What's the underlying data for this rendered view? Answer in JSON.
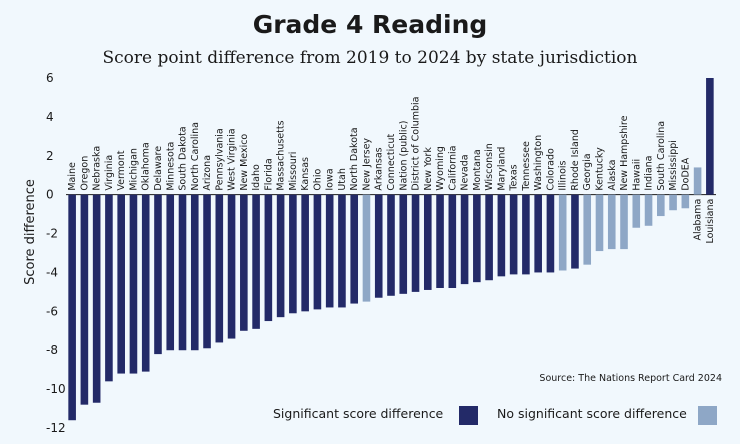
{
  "colors": {
    "significant": "#232a68",
    "not_significant": "#8ea7c6",
    "background": "#f1f8fd"
  },
  "chart_data": {
    "type": "bar",
    "title": "Grade 4 Reading",
    "subtitle": "Score point difference from 2019 to 2024 by state jurisdiction",
    "ylabel": "Score difference",
    "ylim": [
      -12,
      6
    ],
    "yticks": [
      6,
      4,
      2,
      0,
      -2,
      -4,
      -6,
      -8,
      -10,
      -12
    ],
    "grid": false,
    "legend_position": "bottom-right",
    "source": "Source: The Nations Report Card 2024",
    "legend": {
      "significant": "Significant score difference",
      "not_significant": "No significant score difference"
    },
    "categories": [
      "Maine",
      "Oregon",
      "Nebraska",
      "Virginia",
      "Vermont",
      "Michigan",
      "Oklahoma",
      "Delaware",
      "Minnesota",
      "South Dakota",
      "North Carolina",
      "Arizona",
      "Pennsylvania",
      "West Virginia",
      "New Mexico",
      "Idaho",
      "Florida",
      "Massachusetts",
      "Missouri",
      "Kansas",
      "Ohio",
      "Iowa",
      "Utah",
      "North Dakota",
      "New Jersey",
      "Arkansas",
      "Connecticut",
      "Nation (public)",
      "District of Columbia",
      "New York",
      "Wyoming",
      "California",
      "Nevada",
      "Montana",
      "Wisconsin",
      "Maryland",
      "Texas",
      "Tennessee",
      "Washington",
      "Colorado",
      "Illinois",
      "Rhode Island",
      "Georgia",
      "Kentucky",
      "Alaska",
      "New Hampshire",
      "Hawaii",
      "Indiana",
      "South Carolina",
      "Mississippi",
      "DoDEA",
      "Alabama",
      "Louisiana"
    ],
    "values": [
      -11.6,
      -10.8,
      -10.7,
      -9.6,
      -9.2,
      -9.2,
      -9.1,
      -8.2,
      -8.0,
      -8.0,
      -8.0,
      -7.9,
      -7.6,
      -7.4,
      -7.0,
      -6.9,
      -6.5,
      -6.3,
      -6.1,
      -6.0,
      -5.9,
      -5.8,
      -5.8,
      -5.6,
      -5.5,
      -5.3,
      -5.2,
      -5.1,
      -5.0,
      -4.9,
      -4.8,
      -4.8,
      -4.6,
      -4.5,
      -4.4,
      -4.2,
      -4.1,
      -4.1,
      -4.0,
      -4.0,
      -3.9,
      -3.8,
      -3.6,
      -2.9,
      -2.8,
      -2.8,
      -1.7,
      -1.6,
      -1.1,
      -0.8,
      -0.7,
      1.4,
      6.0
    ],
    "significant": [
      true,
      true,
      true,
      true,
      true,
      true,
      true,
      true,
      true,
      true,
      true,
      true,
      true,
      true,
      true,
      true,
      true,
      true,
      true,
      true,
      true,
      true,
      true,
      true,
      false,
      true,
      true,
      true,
      true,
      true,
      true,
      true,
      true,
      true,
      true,
      true,
      true,
      true,
      true,
      true,
      false,
      true,
      false,
      false,
      false,
      false,
      false,
      false,
      false,
      false,
      false,
      false,
      true
    ]
  }
}
